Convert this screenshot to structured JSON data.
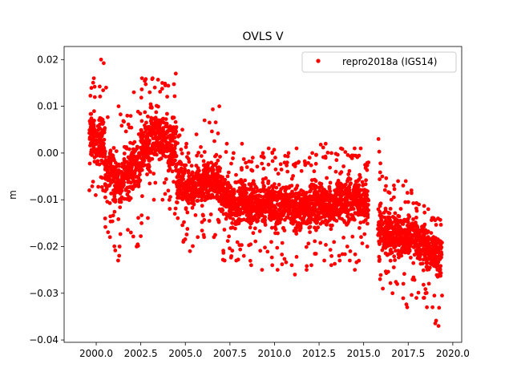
{
  "chart_data": {
    "type": "scatter",
    "title": "OVLS V",
    "xlabel": "",
    "ylabel": "m",
    "xlim": [
      1998.2,
      2020.5
    ],
    "ylim": [
      -0.0405,
      0.0228
    ],
    "xticks": [
      "2000.0",
      "2002.5",
      "2005.0",
      "2007.5",
      "2010.0",
      "2012.5",
      "2015.0",
      "2017.5",
      "2020.0"
    ],
    "xtick_values": [
      2000,
      2002.5,
      2005,
      2007.5,
      2010,
      2012.5,
      2015,
      2017.5,
      2020
    ],
    "yticks": [
      "0.02",
      "0.01",
      "0.00",
      "−0.01",
      "−0.02",
      "−0.03",
      "−0.04"
    ],
    "ytick_values": [
      0.02,
      0.01,
      0,
      -0.01,
      -0.02,
      -0.03,
      -0.04
    ],
    "grid": false,
    "legend": {
      "placement": "top-right",
      "entries": [
        "repro2018a (IGS14)"
      ]
    },
    "series": [
      {
        "name": "repro2018a (IGS14)",
        "color": "#ff0000",
        "marker": "dot",
        "bins_note_columns": [
          "start_year",
          "end_year",
          "center",
          "core_low",
          "core_high",
          "min",
          "max"
        ],
        "bins": [
          [
            1999.6,
            2000.0,
            0.003,
            -0.004,
            0.011,
            -0.009,
            0.016
          ],
          [
            2000.0,
            2000.5,
            0.002,
            -0.005,
            0.01,
            -0.008,
            0.02
          ],
          [
            2000.5,
            2001.0,
            -0.004,
            -0.012,
            0.004,
            -0.018,
            0.014
          ],
          [
            2001.0,
            2001.5,
            -0.006,
            -0.014,
            0.002,
            -0.023,
            0.01
          ],
          [
            2001.5,
            2002.0,
            -0.004,
            -0.012,
            0.004,
            -0.017,
            0.008
          ],
          [
            2002.0,
            2002.5,
            -0.003,
            -0.011,
            0.004,
            -0.02,
            0.013
          ],
          [
            2002.5,
            2003.0,
            0.001,
            -0.008,
            0.01,
            -0.015,
            0.016
          ],
          [
            2003.0,
            2003.5,
            0.004,
            -0.004,
            0.012,
            -0.01,
            0.016
          ],
          [
            2003.5,
            2004.0,
            0.003,
            -0.004,
            0.011,
            -0.01,
            0.015
          ],
          [
            2004.0,
            2004.5,
            0.001,
            -0.007,
            0.01,
            -0.013,
            0.017
          ],
          [
            2004.5,
            2005.0,
            -0.006,
            -0.013,
            0.002,
            -0.019,
            0.005
          ],
          [
            2005.0,
            2005.5,
            -0.008,
            -0.014,
            -0.002,
            -0.021,
            0.002
          ],
          [
            2005.5,
            2006.0,
            -0.007,
            -0.013,
            -0.001,
            -0.018,
            0.004
          ],
          [
            2006.0,
            2006.5,
            -0.006,
            -0.013,
            0.0,
            -0.018,
            0.007
          ],
          [
            2006.5,
            2007.0,
            -0.006,
            -0.013,
            0.001,
            -0.018,
            0.01
          ],
          [
            2007.0,
            2007.5,
            -0.009,
            -0.016,
            -0.003,
            -0.023,
            0.002
          ],
          [
            2007.5,
            2008.0,
            -0.011,
            -0.018,
            -0.005,
            -0.023,
            0.0
          ],
          [
            2008.0,
            2008.5,
            -0.01,
            -0.017,
            -0.004,
            -0.022,
            0.002
          ],
          [
            2008.5,
            2009.0,
            -0.011,
            -0.018,
            -0.004,
            -0.024,
            -0.001
          ],
          [
            2009.0,
            2009.5,
            -0.011,
            -0.018,
            -0.004,
            -0.025,
            0.0
          ],
          [
            2009.5,
            2010.0,
            -0.011,
            -0.018,
            -0.004,
            -0.024,
            0.001
          ],
          [
            2010.0,
            2010.5,
            -0.012,
            -0.019,
            -0.005,
            -0.025,
            -0.001
          ],
          [
            2010.5,
            2011.0,
            -0.011,
            -0.018,
            -0.004,
            -0.024,
            0.0
          ],
          [
            2011.0,
            2011.5,
            -0.012,
            -0.019,
            -0.005,
            -0.026,
            0.001
          ],
          [
            2011.5,
            2012.0,
            -0.012,
            -0.019,
            -0.005,
            -0.025,
            -0.001
          ],
          [
            2012.0,
            2012.5,
            -0.011,
            -0.018,
            -0.004,
            -0.024,
            0.0
          ],
          [
            2012.5,
            2013.0,
            -0.011,
            -0.018,
            -0.004,
            -0.023,
            0.002
          ],
          [
            2013.0,
            2013.5,
            -0.011,
            -0.018,
            -0.004,
            -0.024,
            0.0
          ],
          [
            2013.5,
            2014.0,
            -0.01,
            -0.017,
            -0.003,
            -0.023,
            0.001
          ],
          [
            2014.0,
            2014.5,
            -0.01,
            -0.017,
            -0.003,
            -0.023,
            0.001
          ],
          [
            2014.5,
            2015.0,
            -0.01,
            -0.017,
            -0.003,
            -0.025,
            0.001
          ],
          [
            2015.0,
            2015.3,
            -0.011,
            -0.017,
            -0.004,
            -0.02,
            -0.002
          ],
          [
            2015.8,
            2016.0,
            -0.016,
            -0.022,
            -0.008,
            -0.027,
            0.003
          ],
          [
            2016.0,
            2016.5,
            -0.017,
            -0.023,
            -0.01,
            -0.029,
            -0.005
          ],
          [
            2016.5,
            2017.0,
            -0.018,
            -0.024,
            -0.011,
            -0.03,
            -0.006
          ],
          [
            2017.0,
            2017.5,
            -0.018,
            -0.024,
            -0.012,
            -0.033,
            -0.006
          ],
          [
            2017.5,
            2018.0,
            -0.018,
            -0.024,
            -0.011,
            -0.031,
            -0.008
          ],
          [
            2018.0,
            2018.5,
            -0.019,
            -0.025,
            -0.013,
            -0.031,
            -0.011
          ],
          [
            2018.5,
            2019.0,
            -0.021,
            -0.027,
            -0.015,
            -0.033,
            -0.012
          ],
          [
            2019.0,
            2019.4,
            -0.022,
            -0.028,
            -0.016,
            -0.037,
            -0.014
          ]
        ]
      }
    ]
  }
}
